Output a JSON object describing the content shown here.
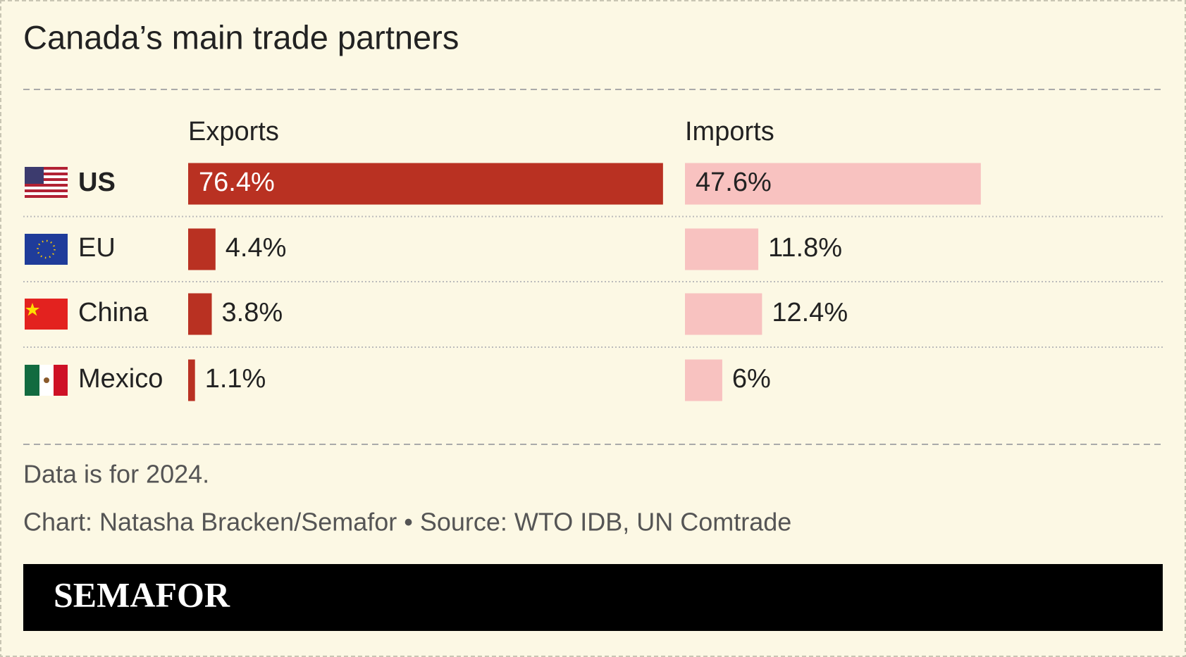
{
  "chart_data": {
    "type": "bar",
    "title": "Canada’s main trade partners",
    "categories": [
      "US",
      "EU",
      "China",
      "Mexico"
    ],
    "series": [
      {
        "name": "Exports",
        "color": "#b93122",
        "values": [
          76.4,
          4.4,
          3.8,
          1.1
        ],
        "value_labels": [
          "76.4%",
          "4.4%",
          "3.8%",
          "1.1%"
        ]
      },
      {
        "name": "Imports",
        "color": "#f8c2c0",
        "values": [
          47.6,
          11.8,
          12.4,
          6
        ],
        "value_labels": [
          "47.6%",
          "11.8%",
          "12.4%",
          "6%"
        ]
      }
    ],
    "note": "Data is for 2024.",
    "source": "Chart: Natasha Bracken/Semafor • Source: WTO IDB, UN Comtrade"
  },
  "footer": {
    "logo": "SEMAFOR"
  }
}
